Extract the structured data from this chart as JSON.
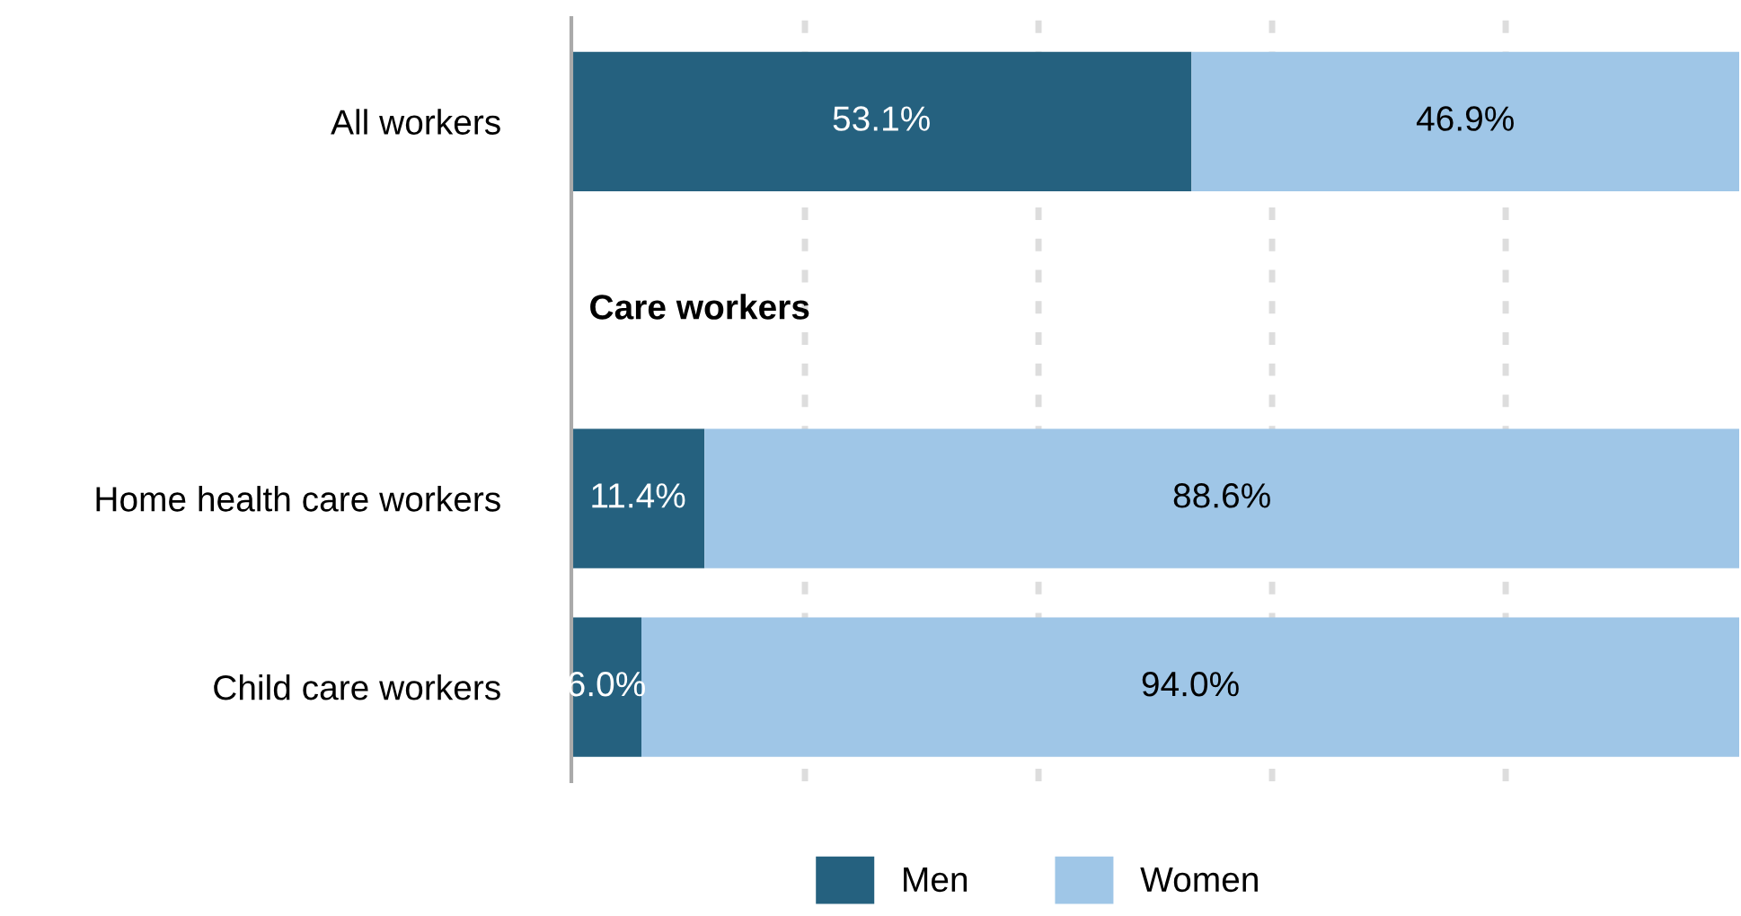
{
  "chart_data": {
    "type": "bar",
    "orientation": "horizontal",
    "stacked": true,
    "categories": [
      "All workers",
      null,
      "Home health care workers",
      "Child care workers"
    ],
    "series": [
      {
        "name": "Men",
        "color": "#25617f",
        "values": [
          53.1,
          null,
          11.4,
          6.0
        ],
        "value_labels": [
          "53.1%",
          null,
          "11.4%",
          "6.0%"
        ]
      },
      {
        "name": "Women",
        "color": "#9fc6e7",
        "values": [
          46.9,
          null,
          88.6,
          94.0
        ],
        "value_labels": [
          "46.9%",
          null,
          "88.6%",
          "94.0%"
        ]
      }
    ],
    "xlim": [
      0,
      100
    ],
    "xticks": [
      {
        "value": 20,
        "label": null
      },
      {
        "value": 40,
        "label": null
      },
      {
        "value": 60,
        "label": null
      },
      {
        "value": 80,
        "label": null
      }
    ],
    "grid": "x",
    "legend": "bottom",
    "tick_labels": "y",
    "annotations": [
      "Care workers"
    ]
  }
}
